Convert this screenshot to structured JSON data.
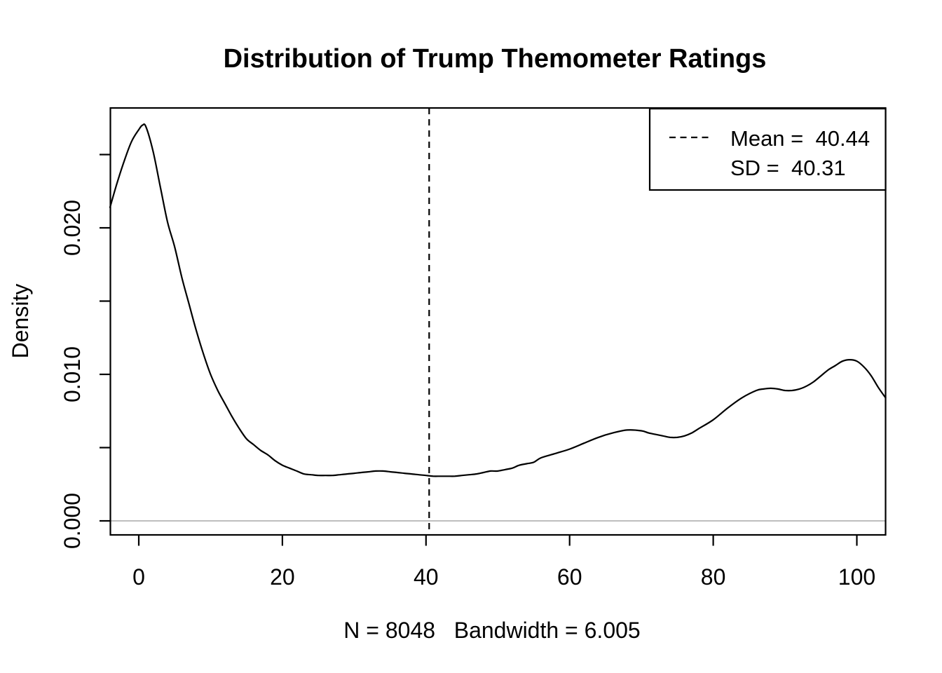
{
  "chart_data": {
    "type": "line",
    "title": "Distribution of Trump Themometer Ratings",
    "xlabel": "N = 8048   Bandwidth = 6.005",
    "ylabel": "Density",
    "xlim": [
      -4,
      104
    ],
    "ylim": [
      -0.001,
      0.0282
    ],
    "grid": false,
    "x_ticks": [
      0,
      20,
      40,
      60,
      80,
      100
    ],
    "x_tick_labels": [
      "0",
      "20",
      "40",
      "60",
      "80",
      "100"
    ],
    "y_ticks": [
      0,
      0.005,
      0.01,
      0.015,
      0.02,
      0.025
    ],
    "y_tick_labels": [
      "0.000",
      "",
      "0.010",
      "",
      "0.020",
      ""
    ],
    "baseline": {
      "y": 0,
      "color": "#bebebe"
    },
    "mean_line": {
      "x": 40.44,
      "style": "dashed",
      "color": "#000000"
    },
    "legend": {
      "position": "top-right",
      "entries": [
        {
          "sample": "dashed-line",
          "label": "Mean =  40.44"
        },
        {
          "sample": "none",
          "label": "SD =  40.31"
        }
      ]
    },
    "stats": {
      "n": 8048,
      "bandwidth": 6.005,
      "mean": 40.44,
      "sd": 40.31
    },
    "series": [
      {
        "name": "density",
        "color": "#000000",
        "points": [
          [
            -4,
            0.0214
          ],
          [
            -3,
            0.0231
          ],
          [
            -2,
            0.0246
          ],
          [
            -1,
            0.0259
          ],
          [
            0,
            0.0267
          ],
          [
            0.5,
            0.027
          ],
          [
            1,
            0.0269
          ],
          [
            2,
            0.0252
          ],
          [
            3,
            0.0228
          ],
          [
            4,
            0.0204
          ],
          [
            5,
            0.0187
          ],
          [
            6,
            0.0166
          ],
          [
            7,
            0.0148
          ],
          [
            8,
            0.013
          ],
          [
            9,
            0.0114
          ],
          [
            10,
            0.01
          ],
          [
            11,
            0.0089
          ],
          [
            12,
            0.008
          ],
          [
            13,
            0.0071
          ],
          [
            14,
            0.0063
          ],
          [
            15,
            0.0056
          ],
          [
            16,
            0.0052
          ],
          [
            17,
            0.0048
          ],
          [
            18,
            0.0045
          ],
          [
            19,
            0.0041
          ],
          [
            20,
            0.0038
          ],
          [
            21,
            0.0036
          ],
          [
            22,
            0.0034
          ],
          [
            23,
            0.0032
          ],
          [
            24,
            0.00315
          ],
          [
            25,
            0.0031
          ],
          [
            26,
            0.0031
          ],
          [
            27,
            0.0031
          ],
          [
            28,
            0.00315
          ],
          [
            29,
            0.0032
          ],
          [
            30,
            0.00325
          ],
          [
            31,
            0.0033
          ],
          [
            32,
            0.00335
          ],
          [
            33,
            0.0034
          ],
          [
            34,
            0.0034
          ],
          [
            35,
            0.00335
          ],
          [
            36,
            0.0033
          ],
          [
            37,
            0.00325
          ],
          [
            38,
            0.0032
          ],
          [
            39,
            0.00315
          ],
          [
            40,
            0.0031
          ],
          [
            41,
            0.00305
          ],
          [
            42,
            0.00305
          ],
          [
            43,
            0.00305
          ],
          [
            44,
            0.00305
          ],
          [
            45,
            0.0031
          ],
          [
            46,
            0.00315
          ],
          [
            47,
            0.0032
          ],
          [
            48,
            0.0033
          ],
          [
            49,
            0.0034
          ],
          [
            50,
            0.0034
          ],
          [
            51,
            0.0035
          ],
          [
            52,
            0.0036
          ],
          [
            53,
            0.0038
          ],
          [
            54,
            0.0039
          ],
          [
            55,
            0.004
          ],
          [
            56,
            0.0043
          ],
          [
            58,
            0.0046
          ],
          [
            60,
            0.0049
          ],
          [
            62,
            0.0053
          ],
          [
            64,
            0.0057
          ],
          [
            66,
            0.006
          ],
          [
            68,
            0.0062
          ],
          [
            70,
            0.00615
          ],
          [
            71,
            0.006
          ],
          [
            72,
            0.0059
          ],
          [
            73,
            0.0058
          ],
          [
            74,
            0.0057
          ],
          [
            75,
            0.0057
          ],
          [
            76,
            0.0058
          ],
          [
            77,
            0.006
          ],
          [
            78,
            0.0063
          ],
          [
            80,
            0.0069
          ],
          [
            82,
            0.0077
          ],
          [
            84,
            0.0084
          ],
          [
            86,
            0.0089
          ],
          [
            87,
            0.009
          ],
          [
            88,
            0.00905
          ],
          [
            89,
            0.009
          ],
          [
            90,
            0.0089
          ],
          [
            91,
            0.0089
          ],
          [
            92,
            0.009
          ],
          [
            93,
            0.0092
          ],
          [
            94,
            0.0095
          ],
          [
            95,
            0.0099
          ],
          [
            96,
            0.0103
          ],
          [
            97,
            0.0106
          ],
          [
            98,
            0.0109
          ],
          [
            99,
            0.011
          ],
          [
            100,
            0.0109
          ],
          [
            101,
            0.0105
          ],
          [
            102,
            0.0099
          ],
          [
            103,
            0.0091
          ],
          [
            104,
            0.0084
          ]
        ]
      }
    ]
  }
}
